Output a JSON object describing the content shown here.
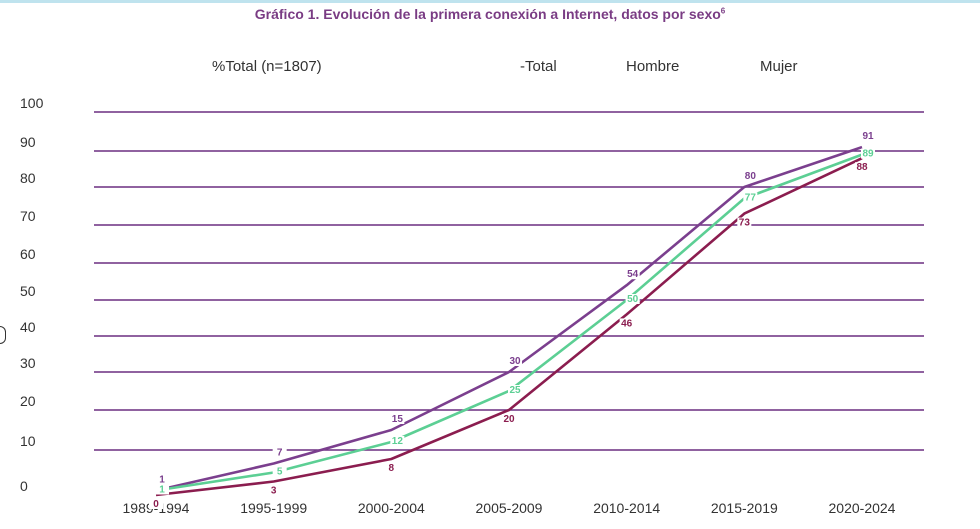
{
  "title": "Gráfico 1. Evolución de la primera conexión a Internet, datos por sexo",
  "title_footnote": "6",
  "legend": {
    "subtitle": "%Total (n=1807)",
    "total": "-Total",
    "hombre": "Hombre",
    "mujer": "Mujer"
  },
  "chart_data": {
    "type": "line",
    "title": "Gráfico 1. Evolución de la primera conexión a Internet, datos por sexo",
    "categories": [
      "1989-1994",
      "1995-1999",
      "2000-2004",
      "2005-2009",
      "2010-2014",
      "2015-2019",
      "2020-2024"
    ],
    "yticks": [
      0,
      10,
      20,
      30,
      40,
      50,
      60,
      70,
      80,
      90,
      100
    ],
    "ylim": [
      0,
      100
    ],
    "grid": true,
    "series": [
      {
        "name": "Hombre",
        "color": "#7b3f8e",
        "values": [
          1,
          7,
          15,
          30,
          54,
          80,
          91
        ]
      },
      {
        "name": "Total",
        "color": "#5ccf94",
        "values": [
          1,
          5,
          12,
          25,
          50,
          77,
          89
        ]
      },
      {
        "name": "Mujer",
        "color": "#8b1d4f",
        "values": [
          0,
          3,
          8,
          20,
          46,
          73,
          88
        ]
      }
    ]
  },
  "colors": {
    "grid": "#6b2f80",
    "title": "#7a3c84"
  }
}
